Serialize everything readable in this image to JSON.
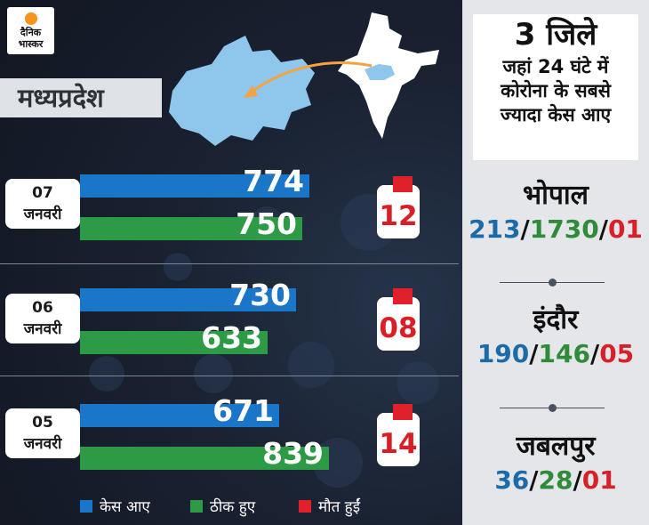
{
  "brand": {
    "line1": "दैनिक",
    "line2": "भास्कर",
    "accent": "#f7941d"
  },
  "region": "मध्यप्रदेश",
  "colors": {
    "cases": "#1976c8",
    "recovered": "#2d9a45",
    "deaths": "#e0202a"
  },
  "chart_data": {
    "type": "bar",
    "categories": [
      "07 जनवरी",
      "06 जनवरी",
      "05 जनवरी"
    ],
    "series": [
      {
        "name": "केस आए",
        "values": [
          774,
          730,
          671
        ]
      },
      {
        "name": "ठीक हुए",
        "values": [
          750,
          633,
          839
        ]
      },
      {
        "name": "मौत हुईं",
        "values": [
          12,
          8,
          14
        ]
      }
    ],
    "death_labels": [
      "12",
      "08",
      "14"
    ],
    "legend_position": "bottom"
  },
  "rows": [
    {
      "day": "07",
      "month": "जनवरी",
      "cases": "774",
      "recovered": "750",
      "deaths": "12"
    },
    {
      "day": "06",
      "month": "जनवरी",
      "cases": "730",
      "recovered": "633",
      "deaths": "08"
    },
    {
      "day": "05",
      "month": "जनवरी",
      "cases": "671",
      "recovered": "839",
      "deaths": "14"
    }
  ],
  "legend": {
    "cases": "केस आए",
    "recovered": "ठीक हुए",
    "deaths": "मौत हुईं"
  },
  "districts_title": {
    "line1": "3 जिले",
    "line2": "जहां 24 घंटे में",
    "line3": "कोरोना के सबसे",
    "line4": "ज्यादा केस आए"
  },
  "districts": [
    {
      "name": "भोपाल",
      "cases": "213",
      "recovered": "1730",
      "deaths": "01"
    },
    {
      "name": "इंदौर",
      "cases": "190",
      "recovered": "146",
      "deaths": "05"
    },
    {
      "name": "जबलपुर",
      "cases": "36",
      "recovered": "28",
      "deaths": "01"
    }
  ]
}
